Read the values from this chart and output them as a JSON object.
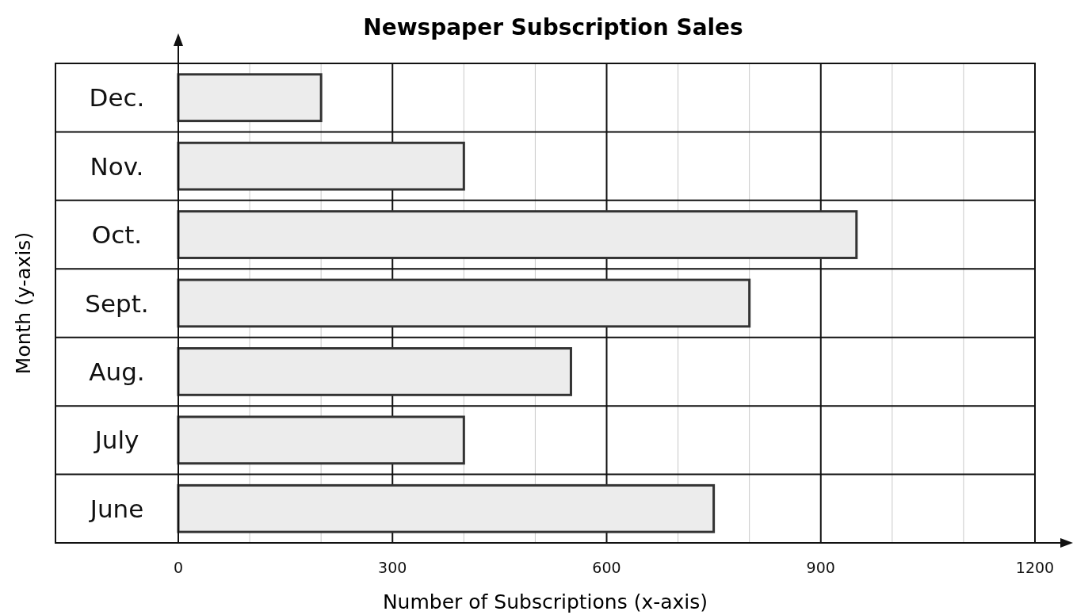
{
  "chart_data": {
    "type": "bar",
    "orientation": "horizontal",
    "title": "Newspaper Subscription Sales",
    "xlabel": "Number of Subscriptions (x-axis)",
    "ylabel": "Month (y-axis)",
    "categories": [
      "Dec.",
      "Nov.",
      "Oct.",
      "Sept.",
      "Aug.",
      "July",
      "June"
    ],
    "values": [
      200,
      400,
      950,
      800,
      550,
      400,
      750
    ],
    "color": "#ececec",
    "xlim": [
      0,
      1200
    ],
    "xticks": [
      0,
      {
        "value": 100,
        "label": null
      },
      {
        "value": 200,
        "label": null
      },
      300,
      {
        "value": 400,
        "label": null
      },
      {
        "value": 500,
        "label": null
      },
      600,
      {
        "value": 700,
        "label": null
      },
      {
        "value": 800,
        "label": null
      },
      900,
      {
        "value": 1000,
        "label": null
      },
      {
        "value": 1100,
        "label": null
      },
      1200
    ],
    "grid": "x"
  }
}
